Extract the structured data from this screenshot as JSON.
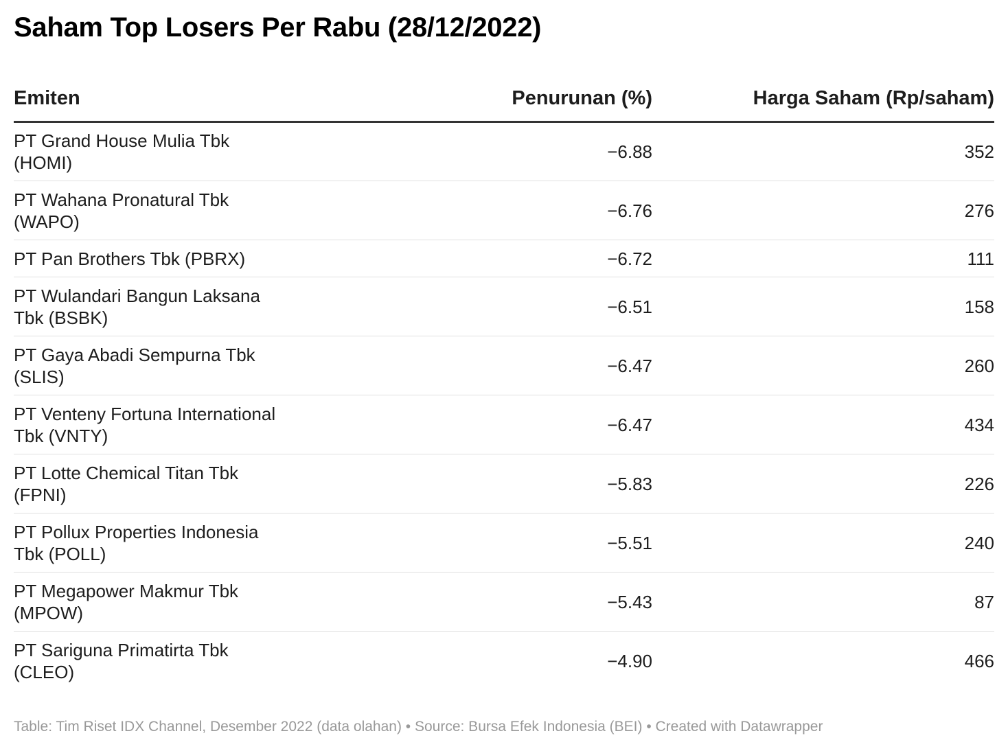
{
  "title": "Saham Top Losers Per Rabu (28/12/2022)",
  "footer": "Table: Tim Riset IDX Channel, Desember 2022 (data olahan) • Source: Bursa Efek Indonesia (BEI) • Created with Datawrapper",
  "chart_data": {
    "type": "table",
    "columns": [
      "Emiten",
      "Penurunan (%)",
      "Harga Saham (Rp/saham)"
    ],
    "rows": [
      {
        "line1": "PT Grand House Mulia Tbk",
        "line2": "(HOMI)",
        "pct": "−6.88",
        "price": "352"
      },
      {
        "line1": "PT Wahana Pronatural Tbk",
        "line2": "(WAPO)",
        "pct": "−6.76",
        "price": "276"
      },
      {
        "line1": "PT Pan Brothers Tbk (PBRX)",
        "line2": "",
        "pct": "−6.72",
        "price": "111"
      },
      {
        "line1": "PT Wulandari Bangun Laksana",
        "line2": "Tbk (BSBK)",
        "pct": "−6.51",
        "price": "158"
      },
      {
        "line1": "PT Gaya Abadi Sempurna Tbk",
        "line2": "(SLIS)",
        "pct": "−6.47",
        "price": "260"
      },
      {
        "line1": "PT Venteny Fortuna International",
        "line2": "Tbk (VNTY)",
        "pct": "−6.47",
        "price": "434"
      },
      {
        "line1": "PT Lotte Chemical Titan Tbk",
        "line2": "(FPNI)",
        "pct": "−5.83",
        "price": "226"
      },
      {
        "line1": "PT Pollux Properties Indonesia",
        "line2": "Tbk (POLL)",
        "pct": "−5.51",
        "price": "240"
      },
      {
        "line1": "PT Megapower Makmur Tbk",
        "line2": "(MPOW)",
        "pct": "−5.43",
        "price": "87"
      },
      {
        "line1": "PT Sariguna Primatirta Tbk",
        "line2": "(CLEO)",
        "pct": "−4.90",
        "price": "466"
      }
    ]
  }
}
